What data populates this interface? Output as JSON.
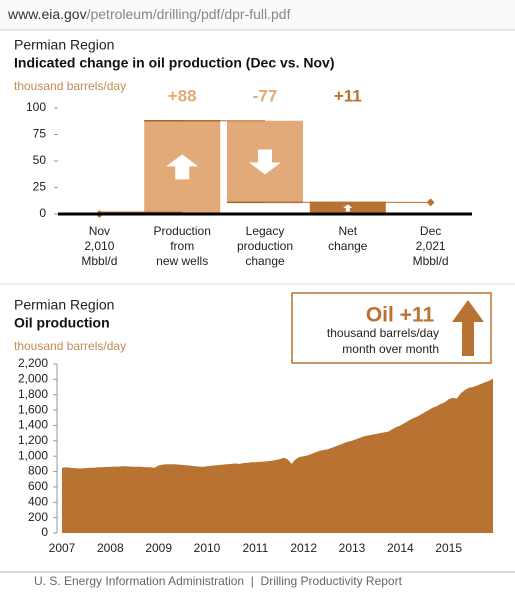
{
  "url": {
    "host": "www.eia.gov",
    "path": "/petroleum/drilling/pdf/dpr-full.pdf"
  },
  "chart_data": [
    {
      "type": "waterfall",
      "subtitle": "Permian Region",
      "title": "Indicated change in oil production (Dec vs. Nov)",
      "y_label": "thousand barrels/day",
      "categories": [
        [
          "Nov",
          "2,010",
          "Mbbl/d"
        ],
        [
          "Production",
          "from",
          "new wells"
        ],
        [
          "Legacy",
          "production",
          "change"
        ],
        [
          "Net",
          "change"
        ],
        [
          "Dec",
          "2,021",
          "Mbbl/d"
        ]
      ],
      "values": [
        0,
        88,
        -77,
        11,
        11
      ],
      "value_labels": [
        null,
        "+88",
        "-77",
        "+11",
        null
      ],
      "colors": [
        "#b87333",
        "#e1aa78",
        "#e1aa78",
        "#b87333",
        "#b87333"
      ],
      "ylim": [
        0,
        100
      ],
      "yticks": [
        0,
        25,
        50,
        75,
        100
      ]
    },
    {
      "type": "area",
      "subtitle": "Permian Region",
      "title": "Oil production",
      "y_label": "thousand barrels/day",
      "color": "#b87333",
      "categories": [
        "2007",
        null,
        null,
        null,
        null,
        null,
        null,
        null,
        null,
        null,
        null,
        null,
        "2008",
        null,
        null,
        null,
        null,
        null,
        null,
        null,
        null,
        null,
        null,
        null,
        "2009",
        null,
        null,
        null,
        null,
        null,
        null,
        null,
        null,
        null,
        null,
        null,
        "2010",
        null,
        null,
        null,
        null,
        null,
        null,
        null,
        null,
        null,
        null,
        null,
        "2011",
        null,
        null,
        null,
        null,
        null,
        null,
        null,
        null,
        null,
        null,
        null,
        "2012",
        null,
        null,
        null,
        null,
        null,
        null,
        null,
        null,
        null,
        null,
        null,
        "2013",
        null,
        null,
        null,
        null,
        null,
        null,
        null,
        null,
        null,
        null,
        null,
        "2014",
        null,
        null,
        null,
        null,
        null,
        null,
        null,
        null,
        null,
        null,
        null,
        "2015",
        null,
        null,
        null,
        null,
        null,
        null,
        null,
        null,
        null,
        null,
        null
      ],
      "values": [
        850,
        855,
        850,
        845,
        840,
        840,
        845,
        850,
        850,
        855,
        855,
        860,
        860,
        865,
        865,
        870,
        870,
        865,
        860,
        865,
        860,
        855,
        855,
        850,
        880,
        890,
        895,
        895,
        895,
        890,
        885,
        880,
        875,
        870,
        865,
        860,
        870,
        875,
        880,
        885,
        890,
        895,
        900,
        905,
        900,
        910,
        915,
        920,
        920,
        925,
        930,
        935,
        940,
        950,
        960,
        980,
        960,
        900,
        960,
        990,
        1000,
        1010,
        1030,
        1050,
        1070,
        1080,
        1090,
        1110,
        1130,
        1150,
        1170,
        1190,
        1200,
        1220,
        1240,
        1260,
        1270,
        1280,
        1290,
        1300,
        1310,
        1320,
        1350,
        1380,
        1400,
        1430,
        1460,
        1490,
        1510,
        1540,
        1570,
        1600,
        1630,
        1650,
        1680,
        1700,
        1740,
        1760,
        1750,
        1820,
        1860,
        1890,
        1900,
        1920,
        1940,
        1960,
        1980,
        2010
      ],
      "ylim": [
        0,
        2200
      ],
      "yticks": [
        0,
        200,
        400,
        600,
        800,
        {
          "value": 1000,
          "label": "1,000"
        },
        {
          "value": 1200,
          "label": "1,200"
        },
        {
          "value": 1400,
          "label": "1,400"
        },
        {
          "value": 1600,
          "label": "1,600"
        },
        {
          "value": 1800,
          "label": "1,800"
        },
        {
          "value": 2000,
          "label": "2,000"
        },
        {
          "value": 2200,
          "label": "2,200"
        }
      ]
    }
  ],
  "callout": {
    "title": "Oil +11",
    "lines": [
      "thousand barrels/day",
      "month over month"
    ]
  },
  "footer": "U. S. Energy Information Administration  |  Drilling Productivity Report"
}
